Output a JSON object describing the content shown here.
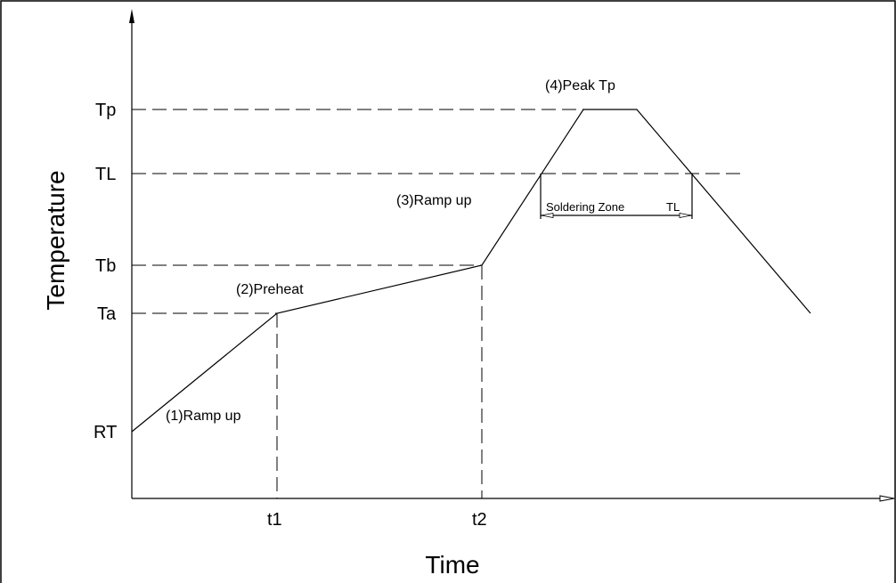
{
  "axes": {
    "x_title": "Time",
    "y_title": "Temperature",
    "y_ticks": [
      "Tp",
      "TL",
      "Tb",
      "Ta",
      "RT"
    ],
    "x_ticks": [
      "t1",
      "t2"
    ]
  },
  "stages": {
    "ramp_up_1": "(1)Ramp up",
    "preheat": "(2)Preheat",
    "ramp_up_3": "(3)Ramp up",
    "peak": "(4)Peak Tp"
  },
  "zone": {
    "label": "Soldering Zone",
    "suffix": "TL"
  }
}
